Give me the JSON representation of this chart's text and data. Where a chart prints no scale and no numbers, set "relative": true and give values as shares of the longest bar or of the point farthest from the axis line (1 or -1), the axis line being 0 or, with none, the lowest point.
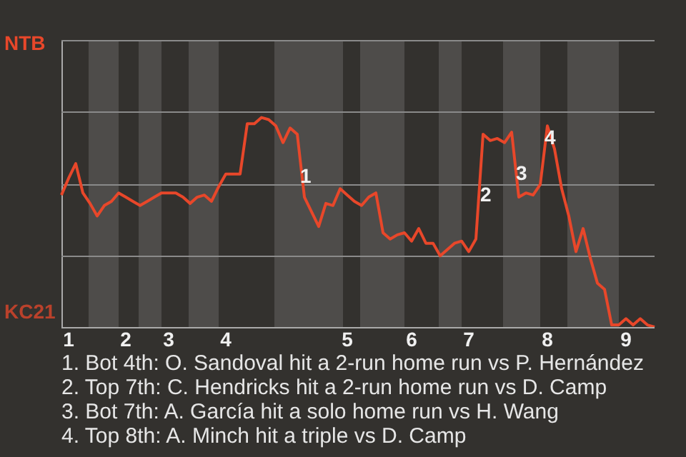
{
  "chart_data": {
    "type": "line",
    "relative": true,
    "categories": [
      null,
      "1",
      null,
      null,
      null,
      null,
      null,
      null,
      null,
      "2",
      null,
      null,
      null,
      null,
      null,
      "3",
      null,
      null,
      null,
      null,
      null,
      null,
      null,
      "4",
      null,
      null,
      null,
      null,
      null,
      null,
      null,
      null,
      null,
      null,
      null,
      null,
      null,
      null,
      null,
      null,
      "5",
      null,
      null,
      null,
      null,
      null,
      null,
      null,
      null,
      "6",
      null,
      null,
      null,
      null,
      null,
      null,
      null,
      "7",
      null,
      null,
      null,
      null,
      null,
      null,
      null,
      null,
      null,
      null,
      "8",
      null,
      null,
      null,
      null,
      null,
      null,
      null,
      null,
      null,
      null,
      "9",
      null,
      null,
      null,
      null
    ],
    "series": [
      {
        "color": "#e8472a",
        "values": [
          0.63,
          0.71,
          0.78,
          0.64,
          0.59,
          0.53,
          0.58,
          0.6,
          0.64,
          0.62,
          0.6,
          0.58,
          0.6,
          0.62,
          0.64,
          0.64,
          0.64,
          0.62,
          0.59,
          0.62,
          0.63,
          0.6,
          0.67,
          0.73,
          0.73,
          0.73,
          0.97,
          0.97,
          1,
          0.99,
          0.96,
          0.88,
          0.95,
          0.92,
          0.62,
          0.55,
          0.48,
          0.59,
          0.58,
          0.66,
          0.63,
          0.6,
          0.58,
          0.62,
          0.64,
          0.45,
          0.42,
          0.44,
          0.45,
          0.41,
          0.47,
          0.4,
          0.4,
          0.34,
          0.37,
          0.4,
          0.41,
          0.36,
          0.42,
          0.92,
          0.89,
          0.9,
          0.88,
          0.93,
          0.62,
          0.64,
          0.63,
          0.68,
          0.96,
          0.85,
          0.66,
          0.53,
          0.36,
          0.47,
          0.33,
          0.21,
          0.18,
          0.01,
          0.01,
          0.04,
          0.01,
          0.04,
          0.01,
          0
        ]
      }
    ],
    "ref_lines": [
      {
        "axis": "y",
        "value": 0.34,
        "color": "#8a8a8a"
      },
      {
        "axis": "y",
        "value": 0.68,
        "color": "#8a8a8a"
      },
      {
        "axis": "y",
        "value": 1.03,
        "color": "#8a8a8a"
      },
      {
        "axis": "y",
        "value": 1.37,
        "color": "#8a8a8a"
      }
    ],
    "marker": "none",
    "annotations": [
      "NTB",
      "KC21",
      "1",
      "2",
      "3",
      "4",
      "1. Bot 4th: O. Sandoval hit a 2-run home run vs P. Hernández",
      "2. Top 7th: C. Hendricks hit a 2-run home run vs D. Camp",
      "3. Bot 7th: A. García hit a solo home run vs H. Wang",
      "4. Top 8th: A. Minch hit a triple vs D. Camp"
    ]
  }
}
